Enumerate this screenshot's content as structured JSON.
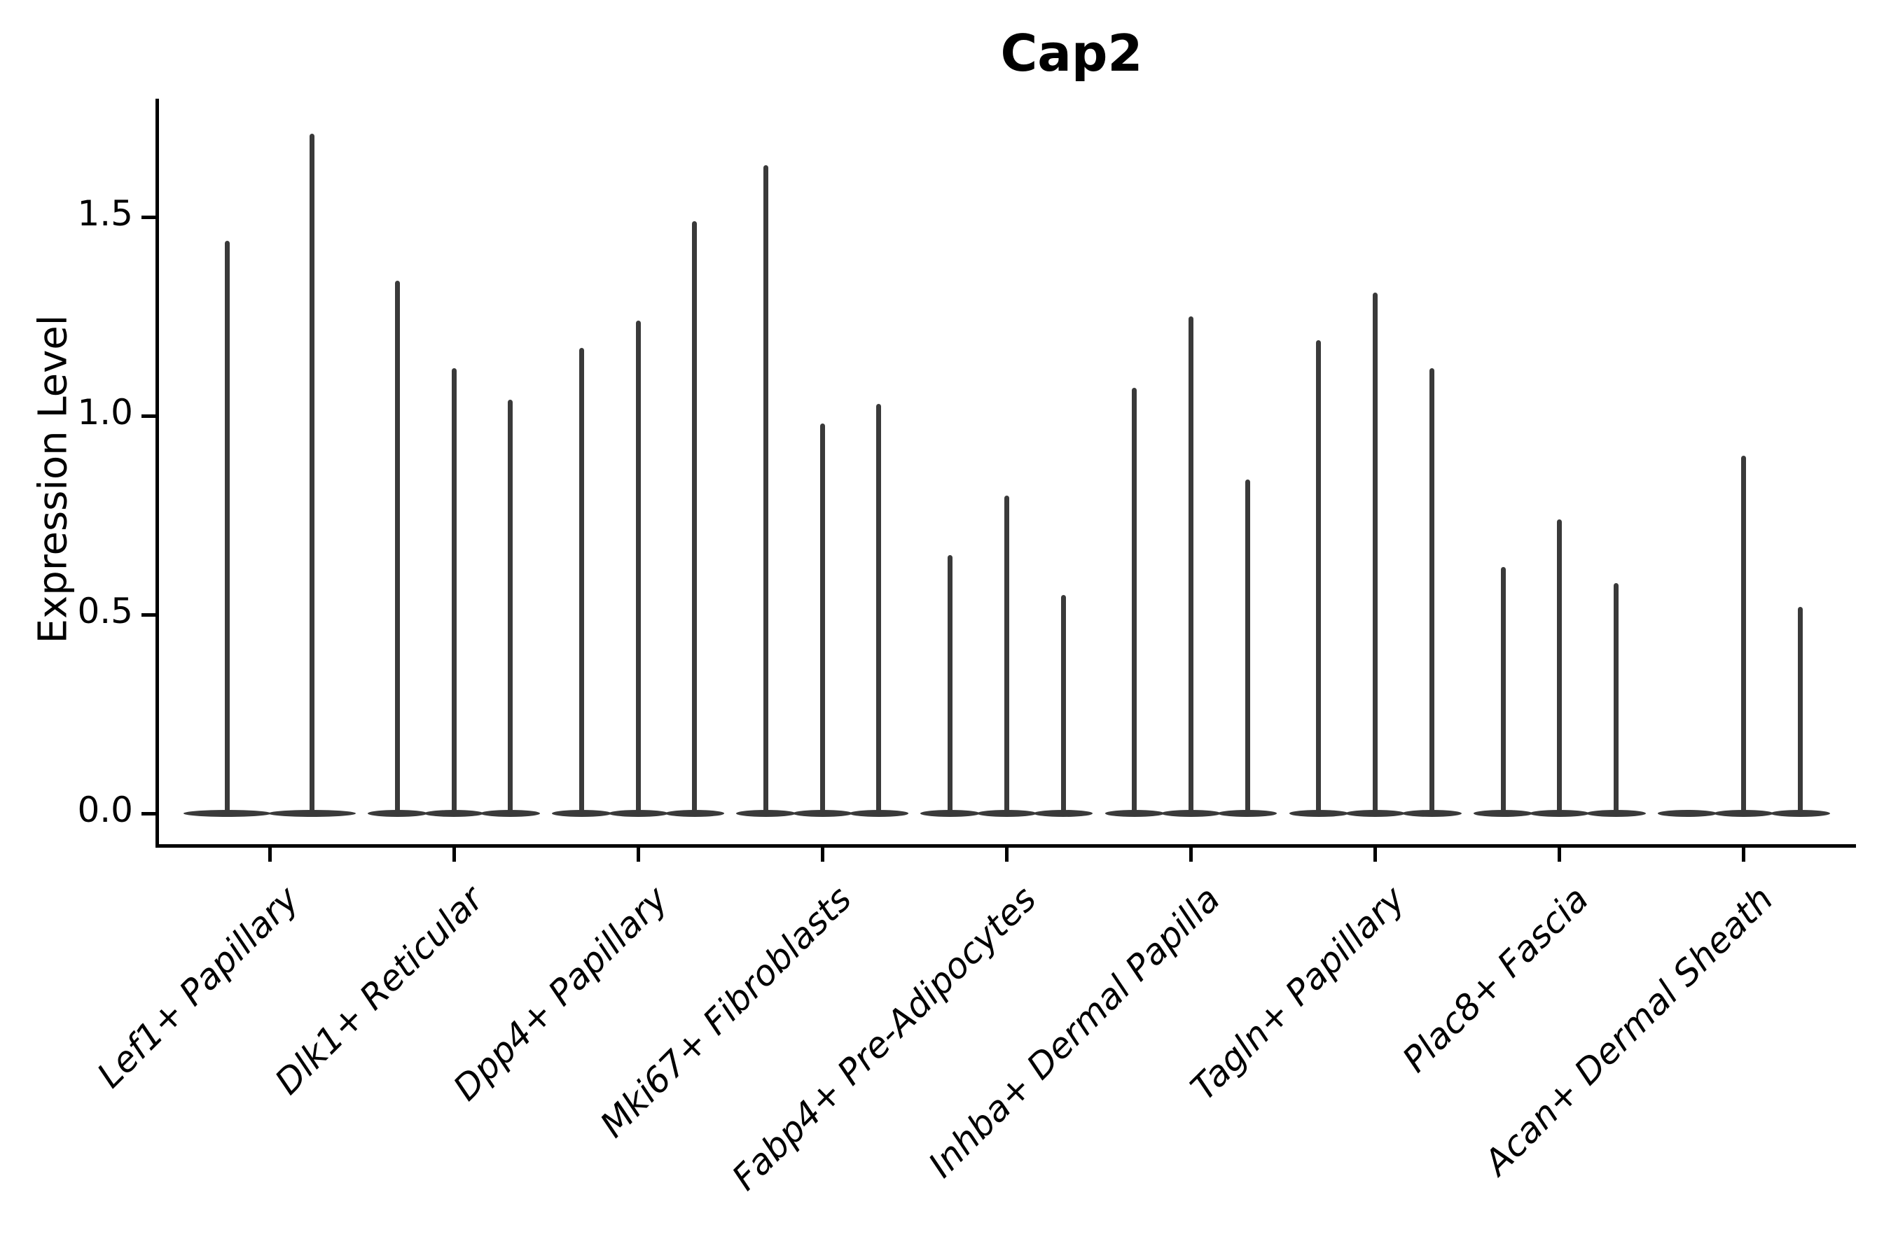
{
  "title": "Cap2",
  "ylabel": "Expression Level",
  "chart_data": {
    "type": "violin",
    "title": "Cap2",
    "xlabel": "",
    "ylabel": "Expression Level",
    "ylim": [
      -0.09,
      1.8
    ],
    "yticks": [
      0.0,
      0.5,
      1.0,
      1.5
    ],
    "ytick_labels": [
      "0.0",
      "0.5",
      "1.0",
      "1.5"
    ],
    "grid": false,
    "legend": "none",
    "violin_color": "#3a3a3a",
    "axis_color": "#000000",
    "background_color": "#ffffff",
    "note": "Thin spike-shaped violins: bulk of distribution at 0 (flat base), spike to max expression. Group 9 first violin has no expressing cells (flat only).",
    "categories": [
      "Lef1+ Papillary",
      "Dlk1+ Reticular",
      "Dpp4+ Papillary",
      "Mki67+ Fibroblasts",
      "Fabp4+ Pre-Adipocytes",
      "Inhba+ Dermal Papilla",
      "Tagln+ Papillary",
      "Plac8+ Fascia",
      "Acan+ Dermal Sheath"
    ],
    "groups": [
      {
        "category": "Lef1+ Papillary",
        "violins": [
          {
            "peak": 1.44
          },
          {
            "peak": 1.71
          }
        ]
      },
      {
        "category": "Dlk1+ Reticular",
        "violins": [
          {
            "peak": 1.34
          },
          {
            "peak": 1.12
          },
          {
            "peak": 1.04
          }
        ]
      },
      {
        "category": "Dpp4+ Papillary",
        "violins": [
          {
            "peak": 1.17
          },
          {
            "peak": 1.24
          },
          {
            "peak": 1.49
          }
        ]
      },
      {
        "category": "Mki67+ Fibroblasts",
        "violins": [
          {
            "peak": 1.63
          },
          {
            "peak": 0.98
          },
          {
            "peak": 1.03
          }
        ]
      },
      {
        "category": "Fabp4+ Pre-Adipocytes",
        "violins": [
          {
            "peak": 0.65
          },
          {
            "peak": 0.8
          },
          {
            "peak": 0.55
          }
        ]
      },
      {
        "category": "Inhba+ Dermal Papilla",
        "violins": [
          {
            "peak": 1.07
          },
          {
            "peak": 1.25
          },
          {
            "peak": 0.84
          }
        ]
      },
      {
        "category": "Tagln+ Papillary",
        "violins": [
          {
            "peak": 1.19
          },
          {
            "peak": 1.31
          },
          {
            "peak": 1.12
          }
        ]
      },
      {
        "category": "Plac8+ Fascia",
        "violins": [
          {
            "peak": 0.62
          },
          {
            "peak": 0.74
          },
          {
            "peak": 0.58
          }
        ]
      },
      {
        "category": "Acan+ Dermal Sheath",
        "violins": [
          {
            "peak": null
          },
          {
            "peak": 0.9
          },
          {
            "peak": 0.52
          }
        ]
      }
    ]
  }
}
